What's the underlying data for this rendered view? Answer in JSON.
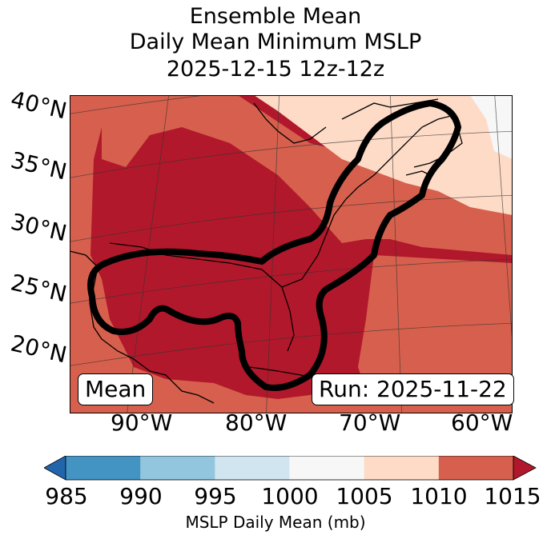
{
  "title": {
    "line1": "Ensemble Mean",
    "line2": "Daily Mean Minimum MSLP",
    "line3": "2025-12-15 12z-12z"
  },
  "map": {
    "lat_labels": [
      "40°N",
      "35°N",
      "30°N",
      "25°N",
      "20°N"
    ],
    "lon_labels": [
      "90°W",
      "80°W",
      "70°W",
      "60°W"
    ],
    "mean_label": "Mean",
    "run_label": "Run: 2025-11-22",
    "field_colors": {
      "1005-1010": "#fddbc7",
      "1010-1015": "#d6604d",
      "above-1015": "#b2182b",
      "1000-1005": "#f7f7f7"
    }
  },
  "colorbar": {
    "ticks": [
      "985",
      "990",
      "995",
      "1000",
      "1005",
      "1010",
      "1015"
    ],
    "label": "MSLP Daily Mean (mb)",
    "colors": [
      "#4393c3",
      "#92c5de",
      "#d1e5f0",
      "#f7f7f7",
      "#fddbc7",
      "#d6604d"
    ],
    "under_color": "#2166ac",
    "over_color": "#b2182b"
  }
}
